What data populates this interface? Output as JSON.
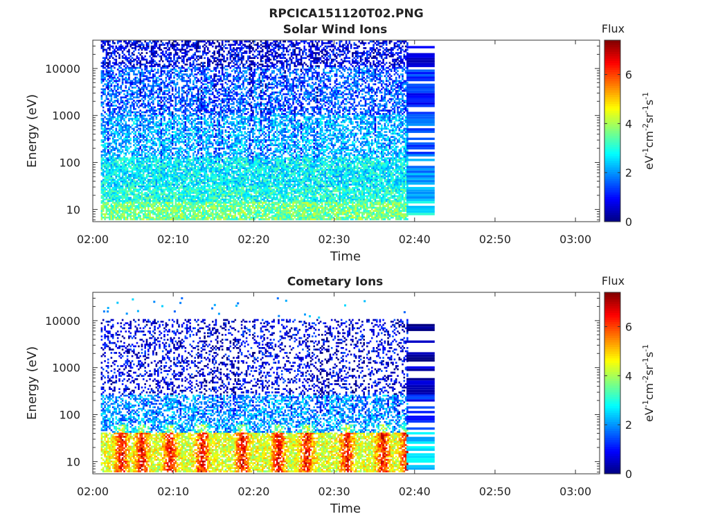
{
  "figure": {
    "filename": "RPCICA151120T02.PNG",
    "colorbar": {
      "title": "Flux",
      "label_parts": [
        "eV",
        "-1",
        "cm",
        "-2",
        "sr",
        "-1",
        "s",
        "-1"
      ],
      "range": [
        0,
        7.4
      ],
      "ticks": [
        "0",
        "2",
        "4",
        "6"
      ],
      "tick_values": [
        0,
        2,
        4,
        6
      ],
      "colormap": "jet"
    }
  },
  "chart_data": [
    {
      "type": "heatmap",
      "title": "Solar Wind Ions",
      "xlabel": "Time",
      "ylabel": "Energy (eV)",
      "yscale": "log",
      "xlim": [
        "02:00",
        "03:03"
      ],
      "ylim": [
        5.5,
        40000
      ],
      "xticks": [
        "02:00",
        "02:10",
        "02:20",
        "02:30",
        "02:40",
        "02:50",
        "03:00"
      ],
      "yticks": [
        "10",
        "100",
        "1000",
        "10000"
      ],
      "data_time_range": [
        "02:01",
        "02:42.5"
      ],
      "energy_bands": [
        {
          "e_lo": 6,
          "e_hi": 14,
          "flux_typ": 3.6
        },
        {
          "e_lo": 14,
          "e_hi": 30,
          "flux_typ": 3.0
        },
        {
          "e_lo": 30,
          "e_hi": 120,
          "flux_typ": 2.7
        },
        {
          "e_lo": 120,
          "e_hi": 1000,
          "flux_typ": 2.2
        },
        {
          "e_lo": 1000,
          "e_hi": 10000,
          "flux_typ": 1.6
        },
        {
          "e_lo": 10000,
          "e_hi": 38000,
          "flux_typ": 0.8
        }
      ]
    },
    {
      "type": "heatmap",
      "title": "Cometary Ions",
      "xlabel": "Time",
      "ylabel": "Energy (eV)",
      "yscale": "log",
      "xlim": [
        "02:00",
        "03:03"
      ],
      "ylim": [
        5.5,
        40000
      ],
      "xticks": [
        "02:00",
        "02:10",
        "02:20",
        "02:30",
        "02:40",
        "02:50",
        "03:00"
      ],
      "yticks": [
        "10",
        "100",
        "1000",
        "10000"
      ],
      "data_time_range": [
        "02:01",
        "02:42.5"
      ],
      "energy_bands": [
        {
          "e_lo": 6,
          "e_hi": 40,
          "flux_typ": 4.4
        },
        {
          "e_lo": 40,
          "e_hi": 250,
          "flux_typ": 2.0
        },
        {
          "e_lo": 250,
          "e_hi": 10000,
          "flux_typ": 0.8
        }
      ],
      "burst_times_min": [
        2.5,
        5.0,
        8.5,
        12.5,
        17.5,
        22.0,
        25.5,
        30.5,
        35.0,
        38.0
      ]
    }
  ]
}
